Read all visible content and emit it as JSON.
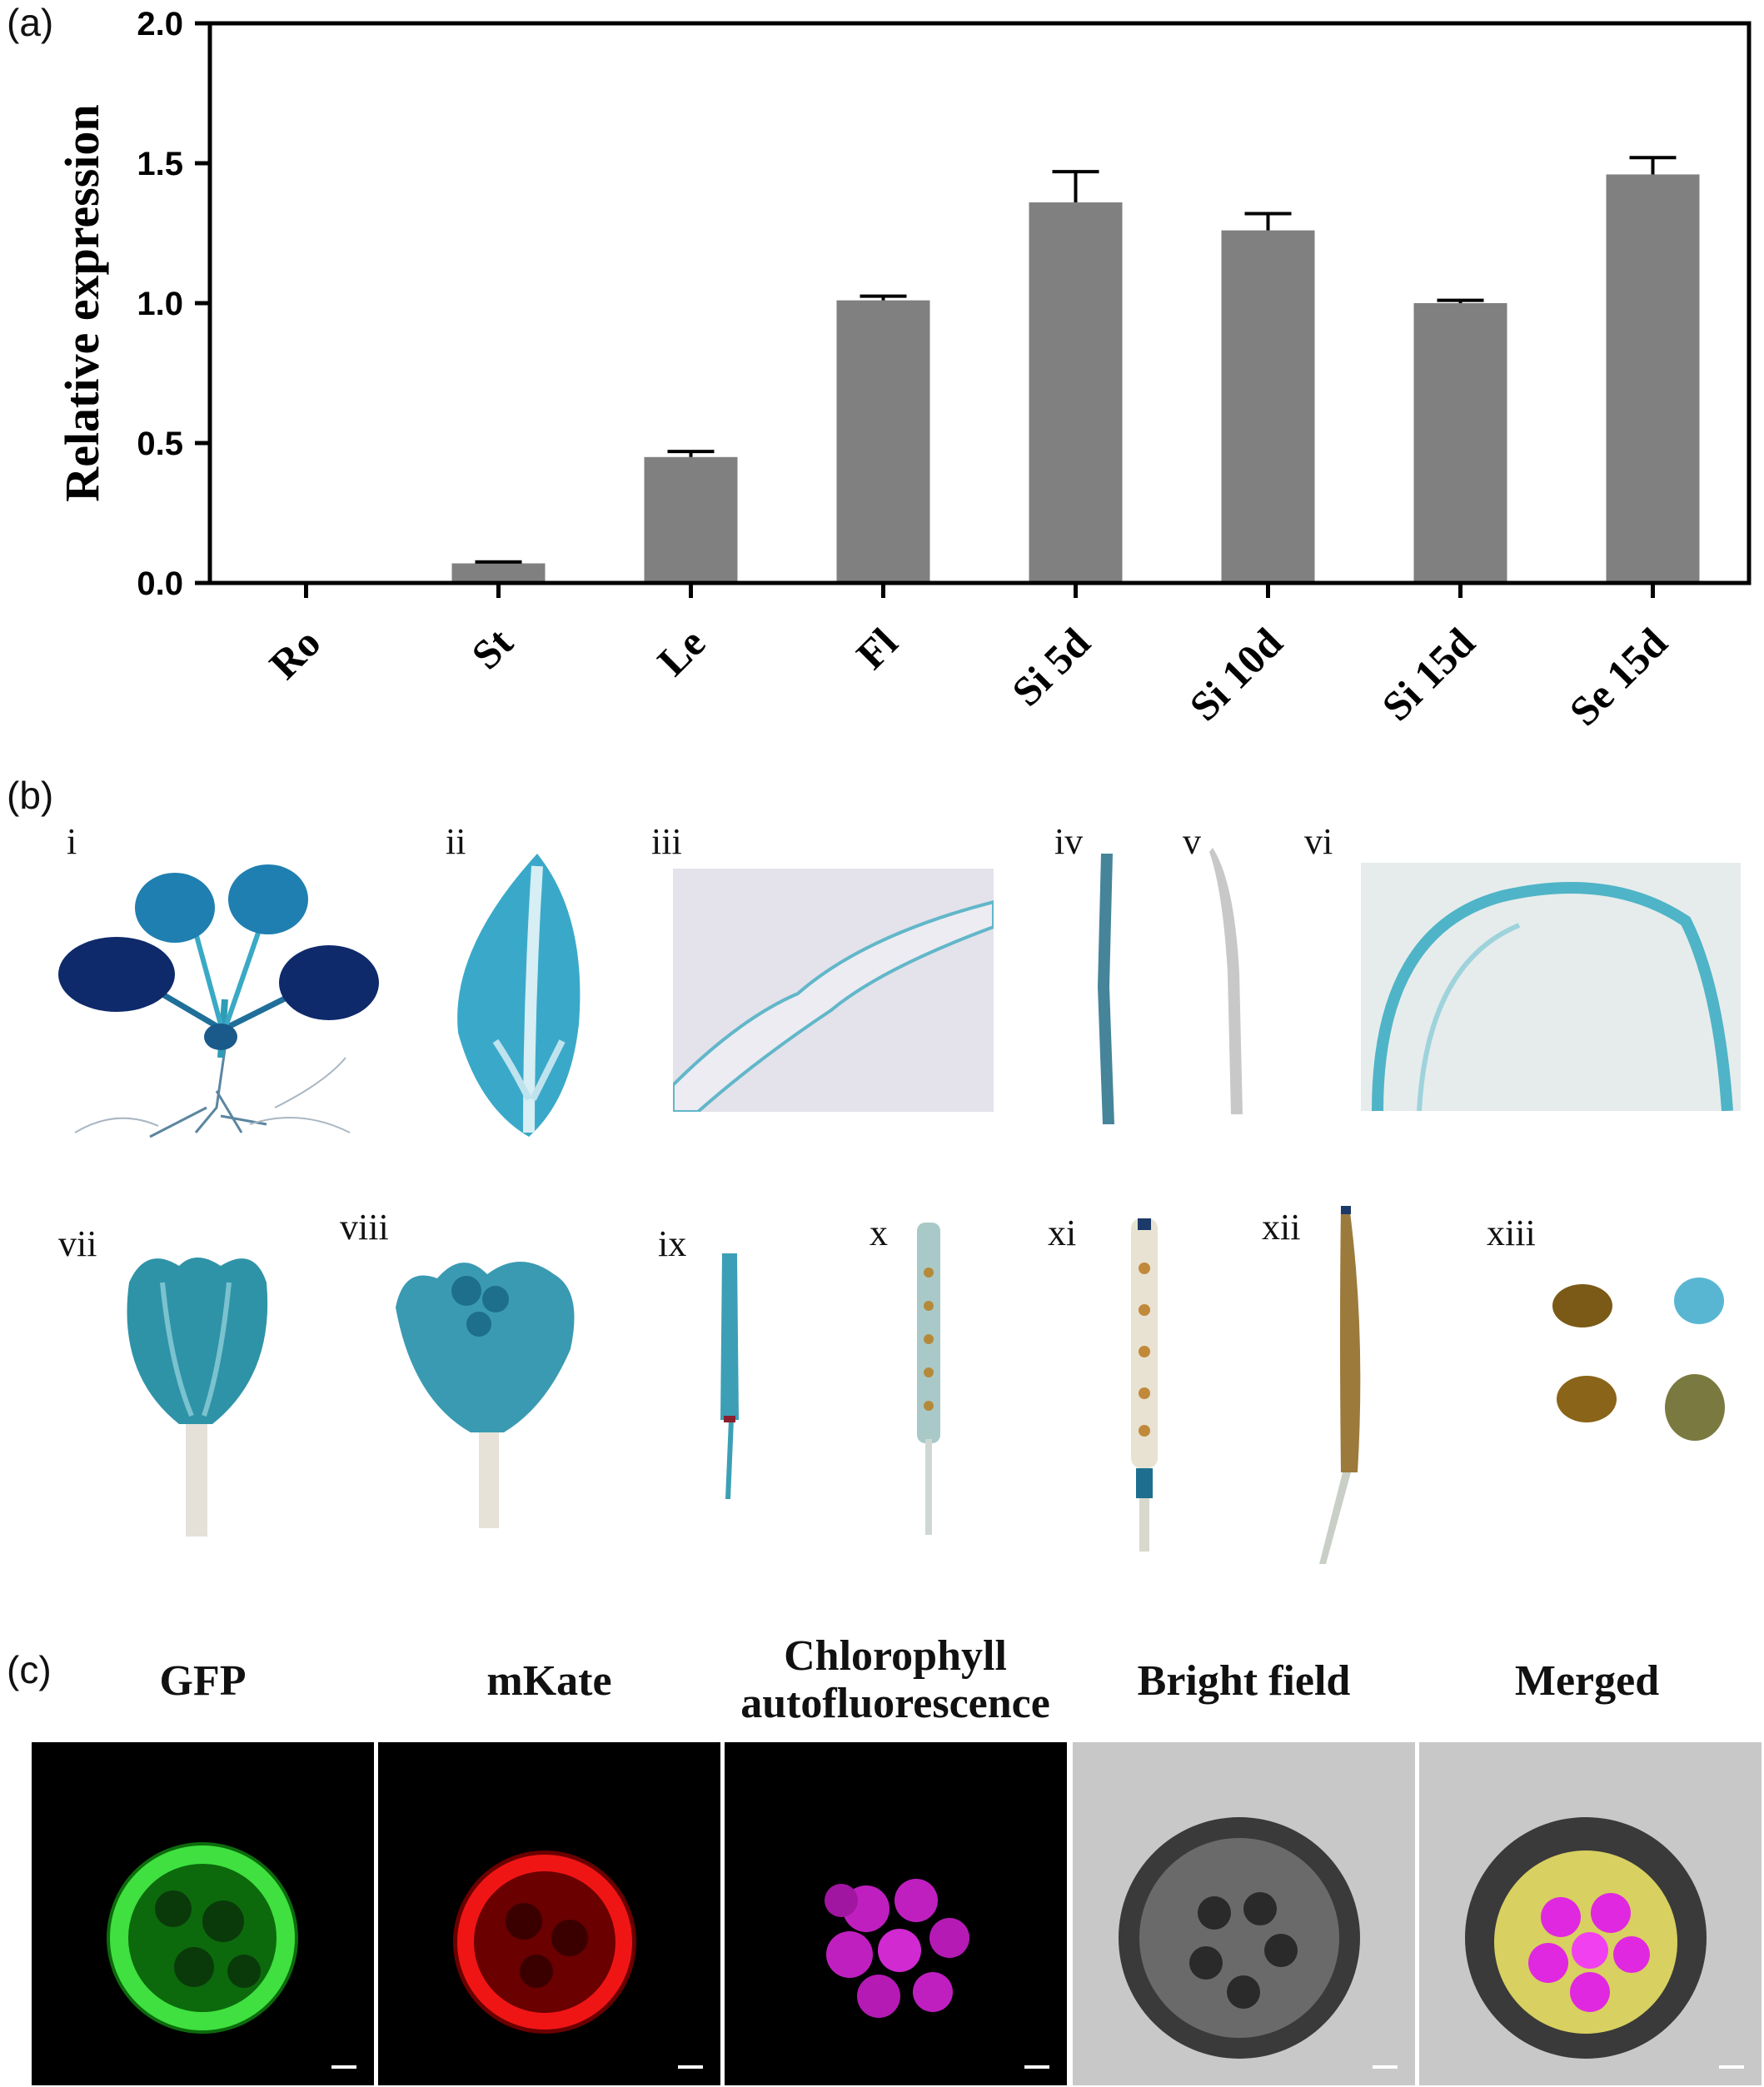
{
  "panels": {
    "a": "(a)",
    "b": "(b)",
    "c": "(c)"
  },
  "chart_data": {
    "type": "bar",
    "ylabel": "Relative expression",
    "xlabel": "",
    "categories": [
      "Ro",
      "St",
      "Le",
      "Fl",
      "Si 5d",
      "Si 10d",
      "Si 15d",
      "Se 15d"
    ],
    "values": [
      0.0,
      0.07,
      0.45,
      1.01,
      1.36,
      1.26,
      1.0,
      1.46
    ],
    "errors": [
      0.0,
      0.005,
      0.02,
      0.015,
      0.11,
      0.06,
      0.01,
      0.06
    ],
    "ylim": [
      0,
      2.0
    ],
    "yticks": [
      "0.0",
      "0.5",
      "1.0",
      "1.5",
      "2.0"
    ],
    "bar_color": "#808080",
    "grid": false
  },
  "panel_b": {
    "labels": [
      "i",
      "ii",
      "iii",
      "iv",
      "v",
      "vi",
      "vii",
      "viii",
      "ix",
      "x",
      "xi",
      "xii",
      "xiii"
    ]
  },
  "panel_c": {
    "titles": [
      "GFP",
      "mKate",
      "Chlorophyll autofluorescence",
      "Bright field",
      "Merged"
    ]
  }
}
